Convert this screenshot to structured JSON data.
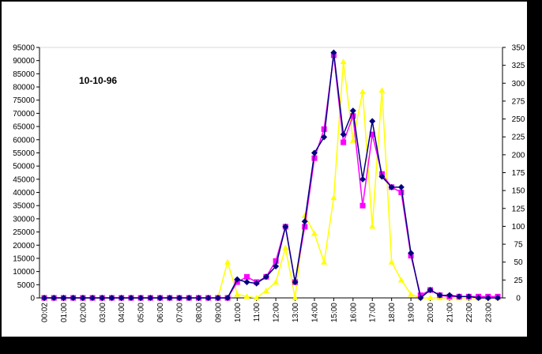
{
  "chart_data": {
    "type": "line",
    "title": "10-10-96",
    "x_tick_labels": [
      "00:02",
      "01:00",
      "02:00",
      "03:00",
      "04:00",
      "05:00",
      "06:00",
      "07:00",
      "08:00",
      "09:00",
      "10:00",
      "11:00",
      "12:00",
      "13:00",
      "14:00",
      "15:00",
      "16:00",
      "17:00",
      "18:00",
      "19:00",
      "20:00",
      "21:00",
      "22:00",
      "23:00"
    ],
    "y_left": {
      "ticks": [
        "0",
        "5000",
        "10000",
        "15000",
        "20000",
        "25000",
        "30000",
        "35000",
        "40000",
        "45000",
        "50000",
        "55000",
        "60000",
        "65000",
        "70000",
        "75000",
        "80000",
        "85000",
        "90000",
        "95000"
      ],
      "lim": [
        0,
        95000
      ]
    },
    "y_right": {
      "ticks": [
        "0",
        "25",
        "50",
        "75",
        "100",
        "125",
        "150",
        "175",
        "200",
        "225",
        "250",
        "275",
        "300",
        "325",
        "350"
      ],
      "lim": [
        0,
        350
      ]
    },
    "x": [
      0,
      0.5,
      1,
      1.5,
      2,
      2.5,
      3,
      3.5,
      4,
      4.5,
      5,
      5.5,
      6,
      6.5,
      7,
      7.5,
      8,
      8.5,
      9,
      9.5,
      10,
      10.5,
      11,
      11.5,
      12,
      12.5,
      13,
      13.5,
      14,
      14.5,
      15,
      15.5,
      16,
      16.5,
      17,
      17.5,
      18,
      18.5,
      19,
      19.5,
      20,
      20.5,
      21,
      21.5,
      22,
      22.5,
      23,
      23.5
    ],
    "series": [
      {
        "axis": "left",
        "marker": "diamond",
        "color": "#000080",
        "values": [
          0,
          0,
          0,
          0,
          0,
          0,
          0,
          0,
          0,
          0,
          0,
          0,
          0,
          0,
          0,
          0,
          0,
          0,
          0,
          0,
          7000,
          6000,
          5500,
          8000,
          12000,
          27000,
          6000,
          29000,
          55000,
          61000,
          93000,
          62000,
          71000,
          45000,
          67000,
          46000,
          42000,
          42000,
          17000,
          0,
          3000,
          1000,
          1000,
          500,
          500,
          0,
          0,
          0
        ]
      },
      {
        "axis": "left",
        "marker": "square",
        "color": "#ff00ff",
        "values": [
          0,
          0,
          0,
          0,
          0,
          0,
          0,
          0,
          0,
          0,
          0,
          0,
          0,
          0,
          0,
          0,
          0,
          0,
          0,
          0,
          6000,
          8000,
          6000,
          8000,
          14000,
          27000,
          6000,
          27000,
          53000,
          64000,
          92000,
          59000,
          69000,
          35000,
          62000,
          47000,
          42000,
          40000,
          16000,
          1000,
          3000,
          1000,
          500,
          500,
          500,
          500,
          500,
          500
        ]
      },
      {
        "axis": "right",
        "marker": "triangle",
        "color": "#ffff00",
        "values": [
          0,
          0,
          0,
          0,
          0,
          0,
          0,
          0,
          0,
          0,
          0,
          0,
          0,
          0,
          0,
          0,
          0,
          0,
          0,
          50,
          5,
          2,
          0,
          10,
          22,
          70,
          0,
          115,
          90,
          50,
          140,
          330,
          220,
          288,
          100,
          290,
          50,
          25,
          5,
          0,
          0,
          0,
          0,
          0,
          0,
          0,
          0,
          0
        ]
      }
    ],
    "grid": false,
    "legend": "none"
  }
}
